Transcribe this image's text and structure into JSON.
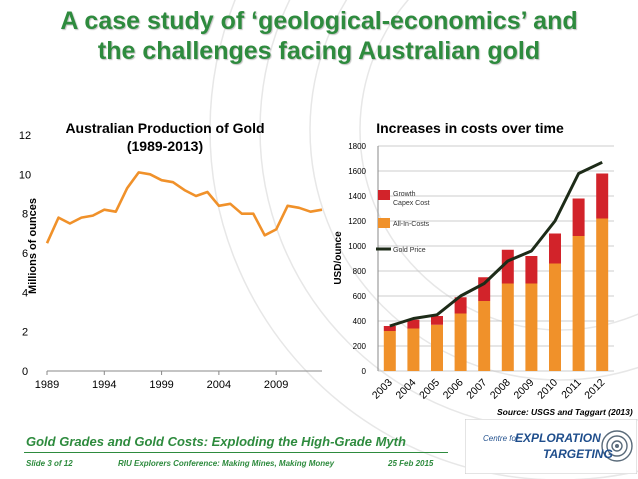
{
  "slide": {
    "title_line1": "A case study of ‘geological-economics’ and",
    "title_line2": "the challenges facing Australian gold",
    "footer_title": "Gold Grades and Gold Costs: Exploding the High-Grade Myth",
    "footer_slide": "Slide 3 of 12",
    "footer_conference": "RIU Explorers Conference: Making Mines, Making Money",
    "footer_date": "25 Feb 2015",
    "source": "Source: USGS and Taggart (2013)",
    "logo_line1": "Centre for",
    "logo_line2": "EXPLORATION",
    "logo_line3": "TARGETING",
    "accent_color": "#2e8b3e"
  },
  "chart_data": [
    {
      "type": "line",
      "title": "Australian Production of Gold",
      "subtitle": "(1989-2013)",
      "ylabel": "Millions of ounces",
      "xlabel": "",
      "ylim": [
        0,
        12
      ],
      "yticks": [
        0,
        2,
        4,
        6,
        8,
        10,
        12
      ],
      "xtick_labels": [
        "1989",
        "1994",
        "1999",
        "2004",
        "2009"
      ],
      "x": [
        1989,
        1990,
        1991,
        1992,
        1993,
        1994,
        1995,
        1996,
        1997,
        1998,
        1999,
        2000,
        2001,
        2002,
        2003,
        2004,
        2005,
        2006,
        2007,
        2008,
        2009,
        2010,
        2011,
        2012,
        2013
      ],
      "values": [
        6.5,
        7.8,
        7.5,
        7.8,
        7.9,
        8.2,
        8.1,
        9.3,
        10.1,
        10.0,
        9.7,
        9.6,
        9.2,
        8.9,
        9.1,
        8.4,
        8.5,
        8.0,
        8.0,
        6.9,
        7.2,
        8.4,
        8.3,
        8.1,
        8.2
      ],
      "color": "#f0912a",
      "grid": false
    },
    {
      "type": "bar",
      "title": "Increases in costs over time",
      "ylabel": "USD/ounce",
      "xlabel": "",
      "ylim": [
        0,
        1800
      ],
      "yticks": [
        0,
        200,
        400,
        600,
        800,
        1000,
        1200,
        1400,
        1600,
        1800
      ],
      "categories": [
        "2003",
        "2004",
        "2005",
        "2006",
        "2007",
        "2008",
        "2009",
        "2010",
        "2011",
        "2012"
      ],
      "series": [
        {
          "name": "All-In-Costs",
          "color": "#f0912a",
          "values": [
            320,
            340,
            370,
            460,
            560,
            700,
            700,
            860,
            1080,
            1220
          ]
        },
        {
          "name": "Growth Capex Cost",
          "color": "#d2232a",
          "values": [
            40,
            70,
            70,
            130,
            190,
            270,
            220,
            240,
            300,
            360
          ]
        },
        {
          "name": "Gold Price",
          "type": "line",
          "color": "#1d2b18",
          "values": [
            360,
            420,
            450,
            600,
            700,
            880,
            960,
            1200,
            1580,
            1670
          ]
        }
      ],
      "legend": [
        "Growth Capex Cost",
        "All-In-Costs",
        "Gold Price"
      ],
      "legend_placement": "upper-left",
      "grid": true
    }
  ]
}
